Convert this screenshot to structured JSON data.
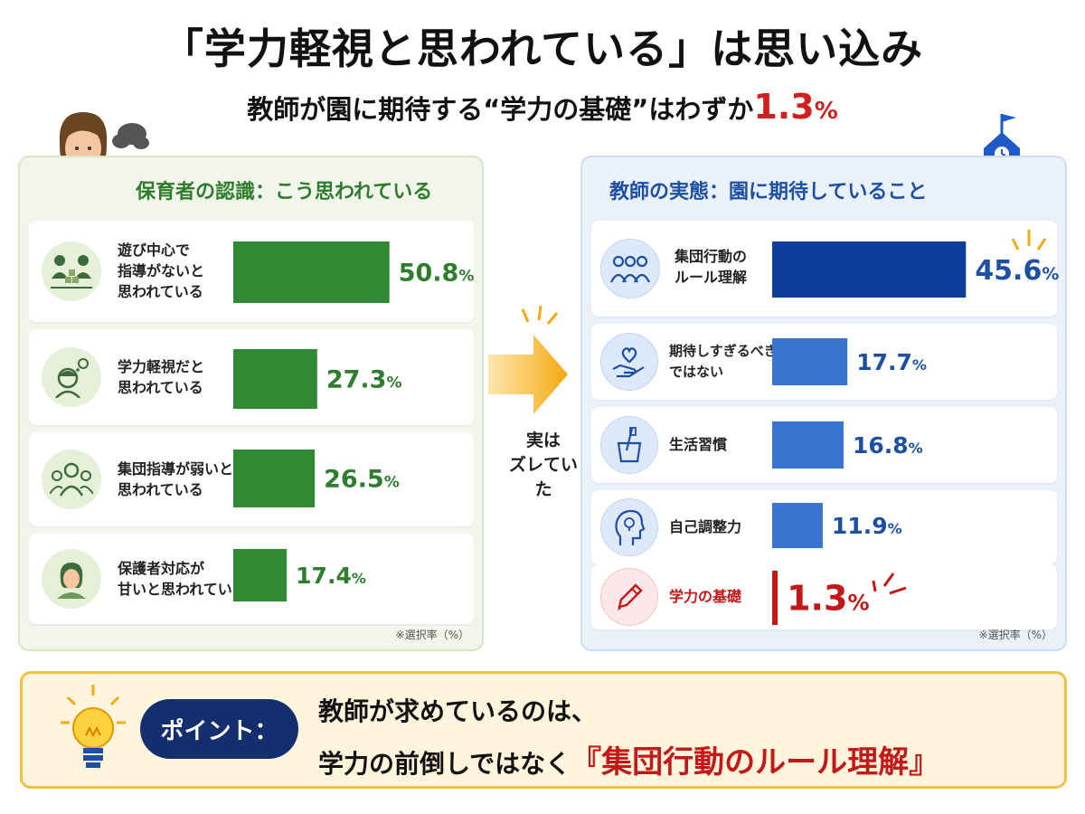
{
  "title": "「学力軽視と思われている」は思い込み",
  "subtitle": {
    "prefix": "教師が園に期待する“学力の基礎”はわずか",
    "highlight": "1.3",
    "unit": "%"
  },
  "arrow_label": "実は\nズレていた",
  "point": {
    "badge": "ポイント：",
    "line1": "教師が求めているのは、",
    "line2_prefix": "学力の前倒しではなく",
    "line2_emphasis": "『集団行動のルール理解』"
  },
  "colors": {
    "green_bar": "#2f8a33",
    "green_text": "#2e7d2e",
    "blue_dark": "#0d3f9a",
    "blue_bar": "#3874d0",
    "blue_text": "#1d4fa3",
    "red": "#c41717",
    "arrow": "#f5a90f"
  },
  "chart_data": [
    {
      "type": "bar",
      "title": "保育者の認識：こう思われている",
      "unit": "%",
      "note": "※選択率（%）",
      "categories": [
        "遊び中心で\n指導がないと\n思われている",
        "学力軽視だと\n思われている",
        "集団指導が弱いと\n思われている",
        "保護者対応が\n甘いと思われている"
      ],
      "values": [
        50.8,
        27.3,
        26.5,
        17.4
      ],
      "icons": [
        "children-playing-icon",
        "thinking-child-icon",
        "group-icon",
        "parent-icon"
      ]
    },
    {
      "type": "bar",
      "title": "教師の実態：園に期待していること",
      "unit": "%",
      "note": "※選択率（%）",
      "categories": [
        "集団行動の\nルール理解",
        "期待しすぎるべき\nではない",
        "生活習慣",
        "自己調整力",
        "学力の基礎"
      ],
      "values": [
        45.6,
        17.7,
        16.8,
        11.9,
        1.3
      ],
      "icons": [
        "people-icon",
        "heart-hand-icon",
        "toothbrush-cup-icon",
        "head-lightbulb-icon",
        "pencil-icon"
      ]
    }
  ]
}
